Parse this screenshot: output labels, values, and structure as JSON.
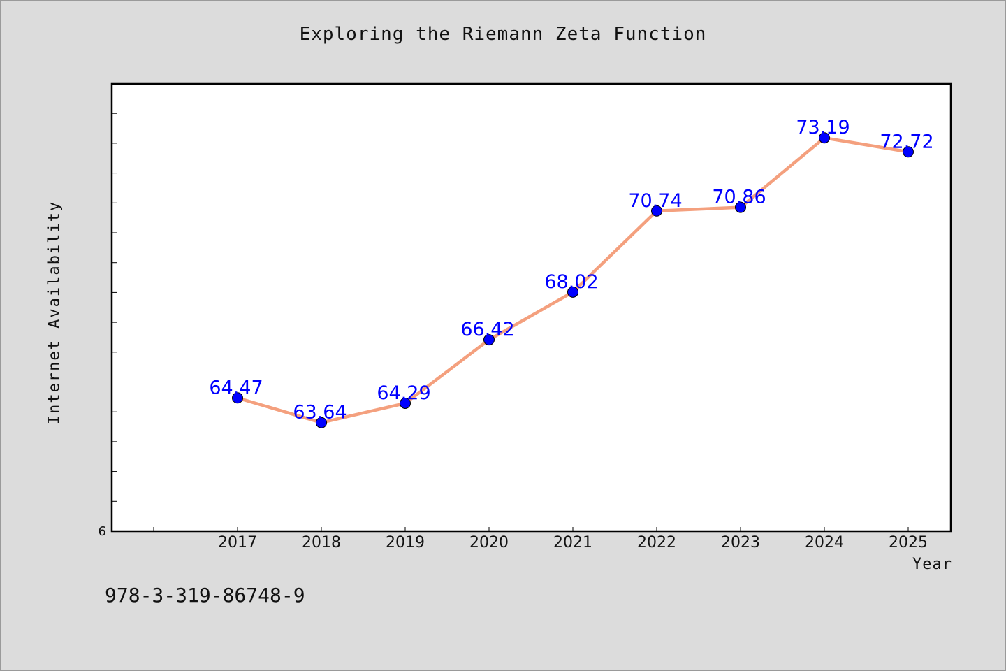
{
  "chart_data": {
    "type": "line",
    "title": "Exploring the Riemann Zeta Function",
    "xlabel": "Year",
    "ylabel": "Internet Availability",
    "categories": [
      "2017",
      "2018",
      "2019",
      "2020",
      "2021",
      "2022",
      "2023",
      "2024",
      "2025"
    ],
    "series": [
      {
        "values": [
          64.47,
          63.64,
          64.29,
          66.42,
          68.02,
          70.74,
          70.86,
          73.19,
          72.72
        ],
        "data_labels": [
          "64.47",
          "63.64",
          "64.29",
          "66.42",
          "68.02",
          "70.74",
          "70.86",
          "73.19",
          "72.72"
        ]
      }
    ],
    "y_tick_label_visible": "6",
    "ylim": [
      60,
      75
    ],
    "grid": false,
    "legend": "none",
    "colors": {
      "line": "#f4a07e",
      "marker": "#0000ff",
      "data_label": "#0000ff",
      "background": "#dcdcdc",
      "plot_area": "#ffffff"
    }
  },
  "footer": {
    "isbn": "978-3-319-86748-9"
  }
}
